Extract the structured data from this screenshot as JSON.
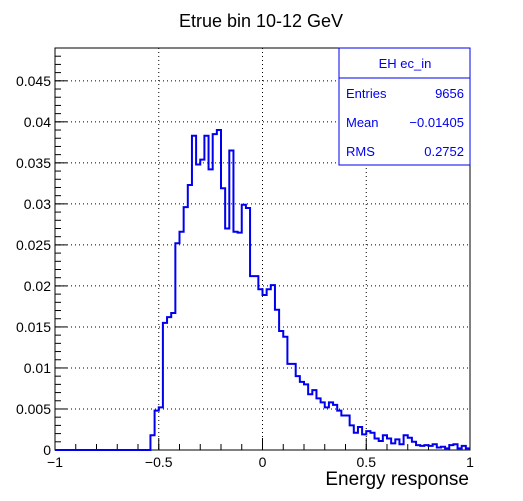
{
  "chart_data": {
    "type": "histogram",
    "title": "Etrue bin 10-12 GeV",
    "xlabel": "Energy response",
    "ylabel": "",
    "xlim": [
      -1,
      1
    ],
    "ylim": [
      0,
      0.049
    ],
    "grid": true,
    "x_ticks": [
      {
        "value": -1,
        "label": "−1"
      },
      {
        "value": -0.5,
        "label": "−0.5"
      },
      {
        "value": 0,
        "label": "0"
      },
      {
        "value": 0.5,
        "label": "0.5"
      },
      {
        "value": 1,
        "label": "1"
      }
    ],
    "y_ticks": [
      {
        "value": 0,
        "label": "0"
      },
      {
        "value": 0.005,
        "label": "0.005"
      },
      {
        "value": 0.01,
        "label": "0.01"
      },
      {
        "value": 0.015,
        "label": "0.015"
      },
      {
        "value": 0.02,
        "label": "0.02"
      },
      {
        "value": 0.025,
        "label": "0.025"
      },
      {
        "value": 0.03,
        "label": "0.03"
      },
      {
        "value": 0.035,
        "label": "0.035"
      },
      {
        "value": 0.04,
        "label": "0.04"
      },
      {
        "value": 0.045,
        "label": "0.045"
      }
    ],
    "bin_width": 0.02,
    "bin_start": -1,
    "series": [
      {
        "name": "EH ec_in",
        "color": "#0000ee",
        "values": [
          0,
          0,
          0,
          0,
          0,
          0,
          0,
          0,
          0,
          0,
          0,
          0,
          0,
          0,
          0,
          0,
          0,
          0,
          0,
          0,
          0,
          0,
          0,
          0.0018,
          0.0048,
          0.0052,
          0.0155,
          0.0162,
          0.0167,
          0.0252,
          0.0266,
          0.0296,
          0.0323,
          0.0383,
          0.0348,
          0.0354,
          0.0383,
          0.0342,
          0.0385,
          0.039,
          0.0319,
          0.027,
          0.0365,
          0.0266,
          0.0265,
          0.0299,
          0.0295,
          0.0212,
          0.0212,
          0.0196,
          0.0189,
          0.0196,
          0.0201,
          0.0171,
          0.0145,
          0.0138,
          0.0105,
          0.0105,
          0.009,
          0.0083,
          0.008,
          0.0068,
          0.0073,
          0.0063,
          0.0058,
          0.0052,
          0.0058,
          0.0055,
          0.0048,
          0.0042,
          0.0042,
          0.003,
          0.0021,
          0.0028,
          0.0019,
          0.0023,
          0.0021,
          0.0014,
          0.0011,
          0.0018,
          0.0014,
          0.0008,
          0.0013,
          0.0007,
          0.0018,
          0.0015,
          0.001,
          0.0006,
          0.0005,
          0.0006,
          0.0005,
          0.0007,
          0.0003,
          0.0004,
          0.0002,
          0.0006,
          0.0007,
          0.0002,
          0.0005,
          0.0002
        ]
      }
    ],
    "stats_box": {
      "title": "EH ec_in",
      "rows": [
        {
          "label": "Entries",
          "value": "9656"
        },
        {
          "label": "Mean",
          "value": "−0.01405"
        },
        {
          "label": "RMS",
          "value": "0.2752"
        }
      ],
      "placement": "top-right"
    }
  }
}
